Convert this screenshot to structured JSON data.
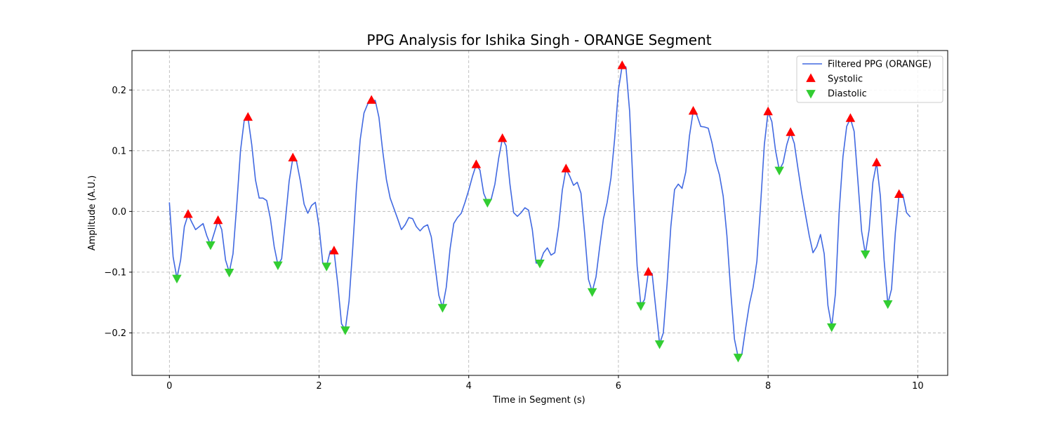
{
  "chart_data": {
    "type": "line",
    "title": "PPG Analysis for Ishika Singh - ORANGE Segment",
    "xlabel": "Time in Segment (s)",
    "ylabel": "Amplitude (A.U.)",
    "xlim": [
      -0.5,
      10.4
    ],
    "ylim": [
      -0.27,
      0.265
    ],
    "xticks": [
      0,
      2,
      4,
      6,
      8,
      10
    ],
    "xtick_labels": [
      "0",
      "2",
      "4",
      "6",
      "8",
      "10"
    ],
    "yticks": [
      -0.2,
      -0.1,
      0.0,
      0.1,
      0.2
    ],
    "ytick_labels": [
      "−0.2",
      "−0.1",
      "0.0",
      "0.1",
      "0.2"
    ],
    "grid": true,
    "legend_position": "top-right",
    "series": [
      {
        "name": "Filtered PPG (ORANGE)",
        "kind": "line",
        "color": "#4169e1",
        "x": [
          0,
          0.05,
          0.1,
          0.15,
          0.2,
          0.25,
          0.3,
          0.35,
          0.4,
          0.45,
          0.5,
          0.55,
          0.6,
          0.65,
          0.7,
          0.75,
          0.8,
          0.85,
          0.9,
          0.95,
          1.0,
          1.05,
          1.1,
          1.15,
          1.2,
          1.25,
          1.3,
          1.35,
          1.4,
          1.45,
          1.5,
          1.55,
          1.6,
          1.65,
          1.7,
          1.75,
          1.8,
          1.85,
          1.9,
          1.95,
          2.0,
          2.05,
          2.1,
          2.15,
          2.2,
          2.25,
          2.3,
          2.35,
          2.4,
          2.45,
          2.5,
          2.55,
          2.6,
          2.65,
          2.7,
          2.75,
          2.8,
          2.85,
          2.9,
          2.95,
          3.0,
          3.05,
          3.1,
          3.15,
          3.2,
          3.25,
          3.3,
          3.35,
          3.4,
          3.45,
          3.5,
          3.55,
          3.6,
          3.65,
          3.7,
          3.75,
          3.8,
          3.85,
          3.9,
          3.95,
          4.0,
          4.05,
          4.1,
          4.15,
          4.2,
          4.25,
          4.3,
          4.35,
          4.4,
          4.45,
          4.5,
          4.55,
          4.6,
          4.65,
          4.7,
          4.75,
          4.8,
          4.85,
          4.9,
          4.95,
          5.0,
          5.05,
          5.1,
          5.15,
          5.2,
          5.25,
          5.3,
          5.35,
          5.4,
          5.45,
          5.5,
          5.55,
          5.6,
          5.65,
          5.7,
          5.75,
          5.8,
          5.85,
          5.9,
          5.95,
          6.0,
          6.05,
          6.1,
          6.15,
          6.2,
          6.25,
          6.3,
          6.35,
          6.4,
          6.45,
          6.5,
          6.55,
          6.6,
          6.65,
          6.7,
          6.75,
          6.8,
          6.85,
          6.9,
          6.95,
          7.0,
          7.05,
          7.1,
          7.15,
          7.2,
          7.25,
          7.3,
          7.35,
          7.4,
          7.45,
          7.5,
          7.55,
          7.6,
          7.65,
          7.7,
          7.75,
          7.8,
          7.85,
          7.9,
          7.95,
          8.0,
          8.05,
          8.1,
          8.15,
          8.2,
          8.25,
          8.3,
          8.35,
          8.4,
          8.45,
          8.5,
          8.55,
          8.6,
          8.65,
          8.7,
          8.75,
          8.8,
          8.85,
          8.9,
          8.95,
          9.0,
          9.05,
          9.1,
          9.15,
          9.2,
          9.25,
          9.3,
          9.35,
          9.4,
          9.45,
          9.5,
          9.55,
          9.6,
          9.65,
          9.7,
          9.75,
          9.8,
          9.85,
          9.9
        ],
        "y": [
          0.015,
          -0.075,
          -0.11,
          -0.08,
          -0.025,
          -0.005,
          -0.018,
          -0.03,
          -0.025,
          -0.02,
          -0.04,
          -0.055,
          -0.035,
          -0.015,
          -0.03,
          -0.08,
          -0.1,
          -0.07,
          0.01,
          0.1,
          0.15,
          0.155,
          0.11,
          0.052,
          0.022,
          0.022,
          0.018,
          -0.012,
          -0.058,
          -0.088,
          -0.078,
          -0.015,
          0.05,
          0.088,
          0.082,
          0.05,
          0.012,
          -0.003,
          0.01,
          0.015,
          -0.025,
          -0.085,
          -0.09,
          -0.065,
          -0.065,
          -0.12,
          -0.185,
          -0.195,
          -0.148,
          -0.06,
          0.04,
          0.118,
          0.162,
          0.177,
          0.182,
          0.183,
          0.155,
          0.1,
          0.052,
          0.022,
          0.005,
          -0.012,
          -0.03,
          -0.022,
          -0.01,
          -0.012,
          -0.025,
          -0.032,
          -0.025,
          -0.022,
          -0.042,
          -0.09,
          -0.138,
          -0.158,
          -0.125,
          -0.062,
          -0.02,
          -0.01,
          -0.003,
          0.015,
          0.035,
          0.058,
          0.077,
          0.068,
          0.03,
          0.015,
          0.02,
          0.045,
          0.088,
          0.12,
          0.108,
          0.045,
          -0.002,
          -0.008,
          -0.002,
          0.006,
          0.002,
          -0.03,
          -0.085,
          -0.085,
          -0.068,
          -0.06,
          -0.072,
          -0.068,
          -0.025,
          0.035,
          0.07,
          0.058,
          0.043,
          0.048,
          0.03,
          -0.038,
          -0.112,
          -0.132,
          -0.108,
          -0.058,
          -0.012,
          0.015,
          0.055,
          0.12,
          0.2,
          0.24,
          0.238,
          0.165,
          0.03,
          -0.09,
          -0.155,
          -0.145,
          -0.1,
          -0.102,
          -0.16,
          -0.218,
          -0.2,
          -0.12,
          -0.025,
          0.036,
          0.045,
          0.038,
          0.065,
          0.125,
          0.165,
          0.158,
          0.14,
          0.139,
          0.137,
          0.113,
          0.082,
          0.06,
          0.025,
          -0.04,
          -0.13,
          -0.21,
          -0.24,
          -0.235,
          -0.192,
          -0.153,
          -0.125,
          -0.082,
          0.012,
          0.11,
          0.164,
          0.148,
          0.1,
          0.068,
          0.08,
          0.11,
          0.13,
          0.112,
          0.07,
          0.03,
          -0.005,
          -0.04,
          -0.068,
          -0.058,
          -0.038,
          -0.07,
          -0.155,
          -0.19,
          -0.135,
          0.0,
          0.09,
          0.14,
          0.153,
          0.132,
          0.05,
          -0.033,
          -0.07,
          -0.03,
          0.048,
          0.08,
          0.025,
          -0.08,
          -0.152,
          -0.128,
          -0.035,
          0.028,
          0.028,
          -0.002,
          -0.009
        ]
      },
      {
        "name": "Systolic",
        "kind": "marker-up",
        "color": "#ff0000",
        "x": [
          0.25,
          0.65,
          1.05,
          1.65,
          2.2,
          2.7,
          4.1,
          4.45,
          5.3,
          6.05,
          6.4,
          7.0,
          8.0,
          8.3,
          9.1,
          9.45,
          9.75
        ],
        "y": [
          -0.005,
          -0.015,
          0.155,
          0.088,
          -0.065,
          0.183,
          0.077,
          0.12,
          0.07,
          0.24,
          -0.1,
          0.165,
          0.164,
          0.13,
          0.153,
          0.08,
          0.028
        ]
      },
      {
        "name": "Diastolic",
        "kind": "marker-down",
        "color": "#32cd32",
        "x": [
          0.1,
          0.55,
          0.8,
          1.45,
          2.1,
          2.35,
          3.65,
          4.25,
          4.95,
          5.65,
          6.3,
          6.55,
          7.6,
          8.15,
          8.85,
          9.3,
          9.6
        ],
        "y": [
          -0.11,
          -0.055,
          -0.1,
          -0.088,
          -0.09,
          -0.195,
          -0.158,
          0.015,
          -0.085,
          -0.132,
          -0.155,
          -0.218,
          -0.24,
          0.068,
          -0.19,
          -0.07,
          -0.152
        ]
      }
    ]
  }
}
